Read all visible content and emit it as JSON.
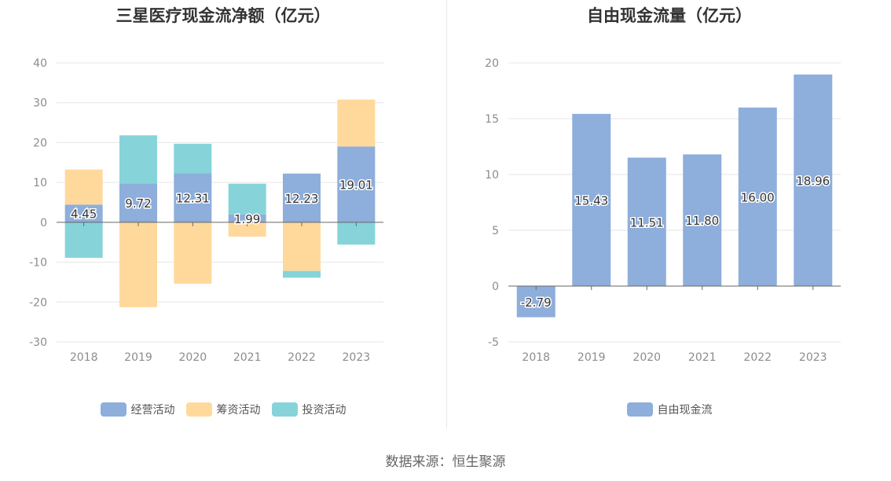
{
  "chart_data": [
    {
      "type": "bar",
      "stacked": true,
      "title": "三星医疗现金流净额（亿元）",
      "categories": [
        "2018",
        "2019",
        "2020",
        "2021",
        "2022",
        "2023"
      ],
      "ylim": [
        -30,
        40
      ],
      "yticks": [
        40,
        30,
        20,
        10,
        0,
        -10,
        -20,
        -30
      ],
      "grid": true,
      "legend_position": "bottom",
      "series": [
        {
          "name": "经营活动",
          "color": "#8eaedb",
          "values": [
            4.45,
            9.72,
            12.31,
            1.99,
            12.23,
            19.01
          ]
        },
        {
          "name": "筹资活动",
          "color": "#ffd99c",
          "values": [
            8.8,
            -21.3,
            -15.4,
            -3.6,
            -12.2,
            11.8
          ]
        },
        {
          "name": "投资活动",
          "color": "#86d4da",
          "values": [
            -8.9,
            12.1,
            7.4,
            7.7,
            -1.7,
            -5.6
          ]
        }
      ],
      "data_labels": [
        "4.45",
        "9.72",
        "12.31",
        "1.99",
        "12.23",
        "19.01"
      ]
    },
    {
      "type": "bar",
      "title": "自由现金流量（亿元）",
      "categories": [
        "2018",
        "2019",
        "2020",
        "2021",
        "2022",
        "2023"
      ],
      "ylim": [
        -5,
        20
      ],
      "yticks": [
        20,
        15,
        10,
        5,
        0,
        -5
      ],
      "grid": true,
      "legend_position": "bottom",
      "series": [
        {
          "name": "自由现金流",
          "color": "#8eaedb",
          "values": [
            -2.79,
            15.43,
            11.51,
            11.8,
            16.0,
            18.96
          ]
        }
      ],
      "data_labels": [
        "-2.79",
        "15.43",
        "11.51",
        "11.80",
        "16.00",
        "18.96"
      ]
    }
  ],
  "source": "数据来源：恒生聚源"
}
